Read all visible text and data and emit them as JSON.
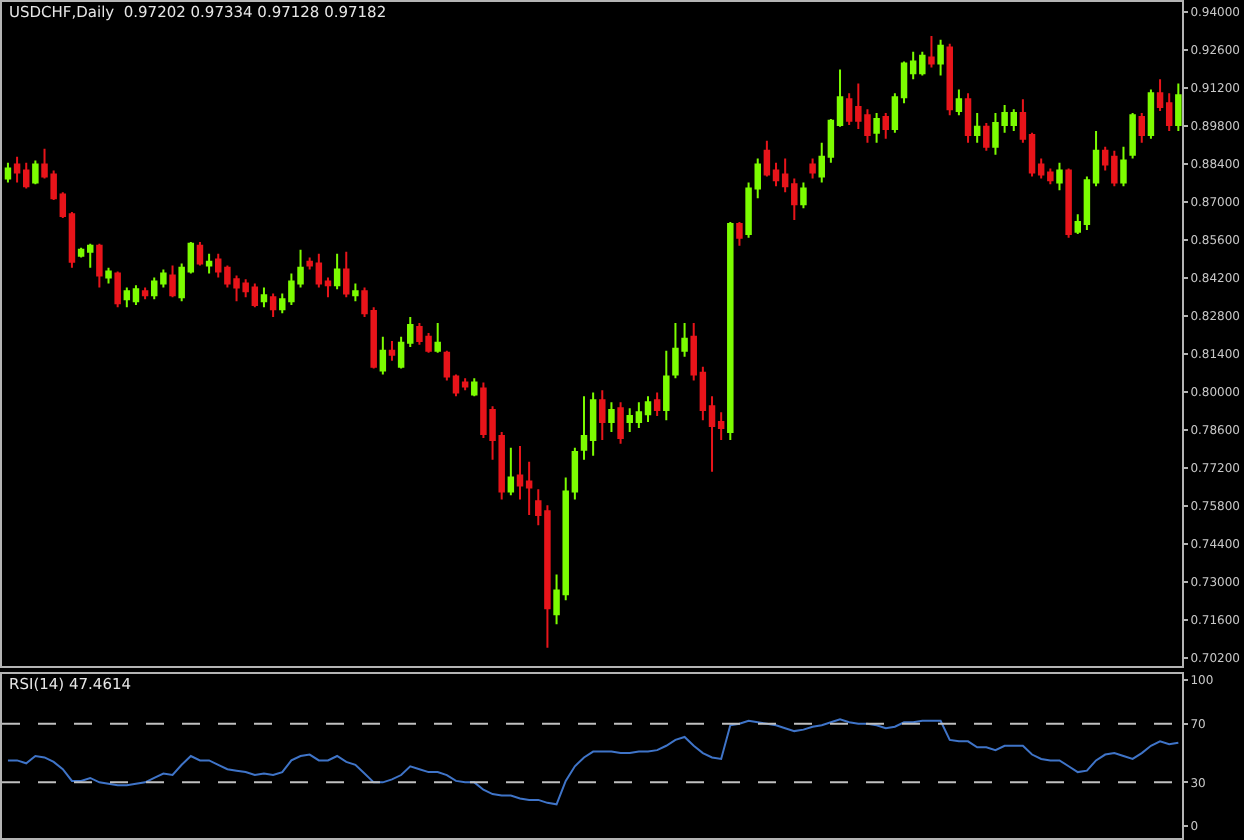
{
  "chart_data": [
    {
      "type": "candlestick",
      "title": "USDCHF,Daily  0.97202 0.97334 0.97128 0.97182",
      "categories": [
        null,
        null,
        null,
        null,
        null,
        null,
        null,
        null,
        null,
        null,
        null,
        null,
        null,
        null,
        null,
        null,
        null,
        null,
        null,
        null,
        null,
        null,
        null,
        null,
        null,
        null,
        null,
        null,
        null,
        null,
        null,
        null,
        null,
        null,
        null,
        null,
        null,
        null,
        null,
        null,
        null,
        null,
        null,
        null,
        null,
        null,
        null,
        null,
        null,
        null,
        null,
        null,
        null,
        null,
        null,
        null,
        null,
        null,
        null,
        null,
        null,
        null,
        null,
        null,
        null,
        null,
        null,
        null,
        null,
        null,
        null,
        null,
        null,
        null,
        null,
        null,
        null,
        null,
        null,
        null,
        null,
        null,
        null,
        null,
        null,
        null,
        null,
        null,
        null,
        null,
        null,
        null,
        null,
        null,
        null,
        null,
        null,
        null,
        null,
        null,
        null,
        null,
        null,
        null,
        null,
        null,
        null,
        null,
        null,
        null,
        null,
        null,
        null,
        null,
        null,
        null,
        null,
        null,
        null,
        null,
        null,
        null,
        null,
        null,
        null,
        null,
        null,
        null,
        null
      ],
      "ohlc": [
        [
          0.8787,
          0.8845,
          0.8772,
          0.8823
        ],
        [
          0.8838,
          0.8867,
          0.8772,
          0.8809
        ],
        [
          0.8816,
          0.8845,
          0.875,
          0.8758
        ],
        [
          0.8772,
          0.8853,
          0.8765,
          0.8838
        ],
        [
          0.8838,
          0.8896,
          0.8787,
          0.8794
        ],
        [
          0.8801,
          0.8816,
          0.8707,
          0.8714
        ],
        [
          0.8728,
          0.8736,
          0.8641,
          0.8648
        ],
        [
          0.8655,
          0.8663,
          0.8458,
          0.848
        ],
        [
          0.8502,
          0.8531,
          0.8495,
          0.8524
        ],
        [
          0.8517,
          0.8546,
          0.8458,
          0.8539
        ],
        [
          0.8539,
          0.8546,
          0.8385,
          0.8429
        ],
        [
          0.8422,
          0.8458,
          0.84,
          0.8444
        ],
        [
          0.8436,
          0.8444,
          0.8312,
          0.8327
        ],
        [
          0.8342,
          0.8385,
          0.8312,
          0.8371
        ],
        [
          0.8334,
          0.8393,
          0.832,
          0.8378
        ],
        [
          0.8371,
          0.8385,
          0.8342,
          0.8356
        ],
        [
          0.8356,
          0.8422,
          0.8342,
          0.8407
        ],
        [
          0.84,
          0.8451,
          0.8385,
          0.8436
        ],
        [
          0.8429,
          0.8466,
          0.8349,
          0.8356
        ],
        [
          0.8349,
          0.8473,
          0.8334,
          0.8458
        ],
        [
          0.8444,
          0.8553,
          0.8436,
          0.8546
        ],
        [
          0.8539,
          0.8553,
          0.8466,
          0.8473
        ],
        [
          0.8466,
          0.8509,
          0.8436,
          0.848
        ],
        [
          0.8488,
          0.8509,
          0.8422,
          0.8444
        ],
        [
          0.8458,
          0.8466,
          0.8385,
          0.84
        ],
        [
          0.8415,
          0.8429,
          0.8334,
          0.8385
        ],
        [
          0.84,
          0.8415,
          0.8349,
          0.8371
        ],
        [
          0.8385,
          0.84,
          0.8312,
          0.832
        ],
        [
          0.8334,
          0.8385,
          0.8312,
          0.8356
        ],
        [
          0.8349,
          0.8363,
          0.8276,
          0.8305
        ],
        [
          0.8305,
          0.8363,
          0.829,
          0.8342
        ],
        [
          0.8334,
          0.8436,
          0.832,
          0.8407
        ],
        [
          0.84,
          0.8524,
          0.8385,
          0.8458
        ],
        [
          0.848,
          0.8495,
          0.8451,
          0.8466
        ],
        [
          0.8473,
          0.8509,
          0.8385,
          0.84
        ],
        [
          0.8407,
          0.8422,
          0.8349,
          0.8393
        ],
        [
          0.8393,
          0.8509,
          0.8378,
          0.8451
        ],
        [
          0.8451,
          0.8517,
          0.8349,
          0.8363
        ],
        [
          0.8356,
          0.84,
          0.8334,
          0.8371
        ],
        [
          0.8371,
          0.8385,
          0.8276,
          0.829
        ],
        [
          0.8298,
          0.8312,
          0.8086,
          0.8093
        ],
        [
          0.8079,
          0.8203,
          0.8064,
          0.8152
        ],
        [
          0.8152,
          0.8188,
          0.8115,
          0.8137
        ],
        [
          0.8093,
          0.8203,
          0.8086,
          0.8181
        ],
        [
          0.8181,
          0.8276,
          0.8166,
          0.8247
        ],
        [
          0.8239,
          0.8254,
          0.8174,
          0.8188
        ],
        [
          0.8203,
          0.8217,
          0.8144,
          0.8152
        ],
        [
          0.8152,
          0.8254,
          0.8144,
          0.8181
        ],
        [
          0.8144,
          0.8152,
          0.8042,
          0.8057
        ],
        [
          0.8057,
          0.8064,
          0.7984,
          0.7998
        ],
        [
          0.8035,
          0.805,
          0.8006,
          0.802
        ],
        [
          0.7991,
          0.805,
          0.7984,
          0.8035
        ],
        [
          0.8013,
          0.8035,
          0.783,
          0.7845
        ],
        [
          0.7933,
          0.7947,
          0.775,
          0.7823
        ],
        [
          0.7838,
          0.7852,
          0.7604,
          0.7633
        ],
        [
          0.7633,
          0.7794,
          0.7619,
          0.7685
        ],
        [
          0.7692,
          0.7801,
          0.7604,
          0.7655
        ],
        [
          0.767,
          0.7743,
          0.7546,
          0.7648
        ],
        [
          0.7597,
          0.7641,
          0.7509,
          0.7546
        ],
        [
          0.756,
          0.7582,
          0.7057,
          0.7203
        ],
        [
          0.7181,
          0.7327,
          0.7144,
          0.7268
        ],
        [
          0.7254,
          0.7685,
          0.7232,
          0.7633
        ],
        [
          0.7633,
          0.7794,
          0.7604,
          0.7779
        ],
        [
          0.7787,
          0.7984,
          0.775,
          0.7838
        ],
        [
          0.7823,
          0.7998,
          0.7765,
          0.7969
        ],
        [
          0.7969,
          0.8006,
          0.7823,
          0.7889
        ],
        [
          0.7889,
          0.7962,
          0.7852,
          0.7933
        ],
        [
          0.794,
          0.7962,
          0.7809,
          0.783
        ],
        [
          0.7889,
          0.794,
          0.7852,
          0.7911
        ],
        [
          0.7889,
          0.7962,
          0.7867,
          0.7925
        ],
        [
          0.7918,
          0.7984,
          0.7889,
          0.7962
        ],
        [
          0.7969,
          0.7998,
          0.7911,
          0.7933
        ],
        [
          0.7933,
          0.8152,
          0.7896,
          0.8057
        ],
        [
          0.8064,
          0.8254,
          0.805,
          0.8159
        ],
        [
          0.8152,
          0.8254,
          0.813,
          0.8196
        ],
        [
          0.8203,
          0.8254,
          0.8042,
          0.8064
        ],
        [
          0.8071,
          0.8093,
          0.7896,
          0.7933
        ],
        [
          0.7947,
          0.7984,
          0.7706,
          0.7874
        ],
        [
          0.7889,
          0.7925,
          0.7823,
          0.7867
        ],
        [
          0.7852,
          0.8626,
          0.7823,
          0.8619
        ],
        [
          0.8619,
          0.8626,
          0.8539,
          0.8568
        ],
        [
          0.8582,
          0.8772,
          0.8568,
          0.875
        ],
        [
          0.875,
          0.886,
          0.8714,
          0.8838
        ],
        [
          0.8889,
          0.8926,
          0.8794,
          0.8801
        ],
        [
          0.8816,
          0.8845,
          0.8758,
          0.878
        ],
        [
          0.8801,
          0.886,
          0.8736,
          0.8758
        ],
        [
          0.8765,
          0.8787,
          0.8634,
          0.8692
        ],
        [
          0.8692,
          0.8772,
          0.8677,
          0.875
        ],
        [
          0.8838,
          0.886,
          0.8787,
          0.8809
        ],
        [
          0.8794,
          0.8918,
          0.8772,
          0.8867
        ],
        [
          0.8867,
          0.9006,
          0.8845,
          0.8999
        ],
        [
          0.8984,
          0.9188,
          0.8977,
          0.9086
        ],
        [
          0.9079,
          0.9101,
          0.8984,
          0.8999
        ],
        [
          0.905,
          0.9137,
          0.8969,
          0.8999
        ],
        [
          0.902,
          0.9042,
          0.8918,
          0.8947
        ],
        [
          0.8955,
          0.9028,
          0.8918,
          0.9006
        ],
        [
          0.9013,
          0.9028,
          0.8933,
          0.8969
        ],
        [
          0.8969,
          0.9101,
          0.8955,
          0.9086
        ],
        [
          0.9086,
          0.9218,
          0.9064,
          0.921
        ],
        [
          0.9174,
          0.9254,
          0.9152,
          0.9218
        ],
        [
          0.9174,
          0.9254,
          0.9166,
          0.9239
        ],
        [
          0.9232,
          0.9312,
          0.9196,
          0.921
        ],
        [
          0.921,
          0.9298,
          0.9166,
          0.9276
        ],
        [
          0.9269,
          0.9283,
          0.902,
          0.9042
        ],
        [
          0.9035,
          0.9115,
          0.902,
          0.9079
        ],
        [
          0.9079,
          0.9101,
          0.8918,
          0.8947
        ],
        [
          0.8947,
          0.9028,
          0.8918,
          0.8977
        ],
        [
          0.8977,
          0.8991,
          0.8889,
          0.8904
        ],
        [
          0.8904,
          0.9028,
          0.8874,
          0.8991
        ],
        [
          0.8984,
          0.9057,
          0.8955,
          0.9028
        ],
        [
          0.8984,
          0.9042,
          0.8962,
          0.9028
        ],
        [
          0.9028,
          0.9079,
          0.8918,
          0.8933
        ],
        [
          0.8947,
          0.8955,
          0.8794,
          0.8809
        ],
        [
          0.8838,
          0.886,
          0.8787,
          0.8801
        ],
        [
          0.8809,
          0.8823,
          0.8765,
          0.878
        ],
        [
          0.8772,
          0.8845,
          0.8743,
          0.8816
        ],
        [
          0.8816,
          0.8823,
          0.8568,
          0.8582
        ],
        [
          0.859,
          0.8655,
          0.8582,
          0.8626
        ],
        [
          0.8619,
          0.8794,
          0.8597,
          0.878
        ],
        [
          0.8772,
          0.8962,
          0.8758,
          0.8889
        ],
        [
          0.8889,
          0.8904,
          0.8816,
          0.8838
        ],
        [
          0.8867,
          0.8889,
          0.8758,
          0.8772
        ],
        [
          0.8772,
          0.8904,
          0.8758,
          0.8853
        ],
        [
          0.8874,
          0.9028,
          0.886,
          0.902
        ],
        [
          0.9013,
          0.9028,
          0.8918,
          0.8947
        ],
        [
          0.8947,
          0.9115,
          0.8933,
          0.9101
        ],
        [
          0.9101,
          0.9152,
          0.9035,
          0.905
        ],
        [
          0.9064,
          0.9101,
          0.8962,
          0.8984
        ],
        [
          0.8984,
          0.9137,
          0.8962,
          0.9093
        ]
      ],
      "colors": [
        "#7cfc00",
        "#e8141a",
        "#e8141a",
        "#7cfc00",
        "#e8141a",
        "#e8141a",
        "#e8141a",
        "#e8141a",
        "#7cfc00",
        "#7cfc00",
        "#e8141a",
        "#7cfc00",
        "#e8141a",
        "#7cfc00",
        "#7cfc00",
        "#e8141a",
        "#7cfc00",
        "#7cfc00",
        "#e8141a",
        "#7cfc00",
        "#7cfc00",
        "#e8141a",
        "#7cfc00",
        "#e8141a",
        "#e8141a",
        "#e8141a",
        "#e8141a",
        "#e8141a",
        "#7cfc00",
        "#e8141a",
        "#7cfc00",
        "#7cfc00",
        "#7cfc00",
        "#e8141a",
        "#e8141a",
        "#e8141a",
        "#7cfc00",
        "#e8141a",
        "#7cfc00",
        "#e8141a",
        "#e8141a",
        "#7cfc00",
        "#e8141a",
        "#7cfc00",
        "#7cfc00",
        "#e8141a",
        "#e8141a",
        "#7cfc00",
        "#e8141a",
        "#e8141a",
        "#e8141a",
        "#7cfc00",
        "#e8141a",
        "#e8141a",
        "#e8141a",
        "#7cfc00",
        "#e8141a",
        "#e8141a",
        "#e8141a",
        "#e8141a",
        "#7cfc00",
        "#7cfc00",
        "#7cfc00",
        "#7cfc00",
        "#7cfc00",
        "#e8141a",
        "#7cfc00",
        "#e8141a",
        "#7cfc00",
        "#7cfc00",
        "#7cfc00",
        "#e8141a",
        "#7cfc00",
        "#7cfc00",
        "#7cfc00",
        "#e8141a",
        "#e8141a",
        "#e8141a",
        "#e8141a",
        "#7cfc00",
        "#e8141a",
        "#7cfc00",
        "#7cfc00",
        "#e8141a",
        "#e8141a",
        "#e8141a",
        "#e8141a",
        "#7cfc00",
        "#e8141a",
        "#7cfc00",
        "#7cfc00",
        "#7cfc00",
        "#e8141a",
        "#e8141a",
        "#e8141a",
        "#7cfc00",
        "#e8141a",
        "#7cfc00",
        "#7cfc00",
        "#7cfc00",
        "#7cfc00",
        "#e8141a",
        "#7cfc00",
        "#e8141a",
        "#7cfc00",
        "#e8141a",
        "#7cfc00",
        "#e8141a",
        "#7cfc00",
        "#7cfc00",
        "#7cfc00",
        "#e8141a",
        "#e8141a",
        "#e8141a",
        "#e8141a",
        "#7cfc00",
        "#e8141a",
        "#7cfc00",
        "#7cfc00",
        "#7cfc00",
        "#e8141a",
        "#e8141a",
        "#7cfc00",
        "#7cfc00",
        "#e8141a",
        "#7cfc00",
        "#e8141a",
        "#e8141a",
        "#7cfc00"
      ],
      "ylim": [
        0.699,
        0.9437
      ],
      "yticks": [
        {
          "value": 0.94,
          "label": "0.94000"
        },
        {
          "value": 0.926,
          "label": "0.92600"
        },
        {
          "value": 0.912,
          "label": "0.91200"
        },
        {
          "value": 0.898,
          "label": "0.89800"
        },
        {
          "value": 0.884,
          "label": "0.88400"
        },
        {
          "value": 0.87,
          "label": "0.87000"
        },
        {
          "value": 0.856,
          "label": "0.85600"
        },
        {
          "value": 0.842,
          "label": "0.84200"
        },
        {
          "value": 0.828,
          "label": "0.82800"
        },
        {
          "value": 0.814,
          "label": "0.81400"
        },
        {
          "value": 0.8,
          "label": "0.80000"
        },
        {
          "value": 0.786,
          "label": "0.78600"
        },
        {
          "value": 0.772,
          "label": "0.77200"
        },
        {
          "value": 0.758,
          "label": "0.75800"
        },
        {
          "value": 0.744,
          "label": "0.74400"
        },
        {
          "value": 0.73,
          "label": "0.73000"
        },
        {
          "value": 0.716,
          "label": "0.71600"
        },
        {
          "value": 0.702,
          "label": "0.70200"
        }
      ],
      "tick_labels": "y"
    },
    {
      "type": "line",
      "title": "RSI(14) 47.4614",
      "categories": [
        null,
        null,
        null,
        null,
        null,
        null,
        null,
        null,
        null,
        null,
        null,
        null,
        null,
        null,
        null,
        null,
        null,
        null,
        null,
        null,
        null,
        null,
        null,
        null,
        null,
        null,
        null,
        null,
        null,
        null,
        null,
        null,
        null,
        null,
        null,
        null,
        null,
        null,
        null,
        null,
        null,
        null,
        null,
        null,
        null,
        null,
        null,
        null,
        null,
        null,
        null,
        null,
        null,
        null,
        null,
        null,
        null,
        null,
        null,
        null,
        null,
        null,
        null,
        null,
        null,
        null,
        null,
        null,
        null,
        null,
        null,
        null,
        null,
        null,
        null,
        null,
        null,
        null,
        null,
        null,
        null,
        null,
        null,
        null,
        null,
        null,
        null,
        null,
        null,
        null,
        null,
        null,
        null,
        null,
        null,
        null,
        null,
        null,
        null,
        null,
        null,
        null,
        null,
        null,
        null,
        null,
        null,
        null,
        null,
        null,
        null,
        null,
        null,
        null,
        null,
        null,
        null,
        null,
        null,
        null,
        null,
        null,
        null,
        null,
        null,
        null,
        null,
        null,
        null
      ],
      "series": [
        {
          "color": "#3f74c8",
          "values": [
            45,
            45,
            43,
            48,
            47,
            44,
            39,
            31,
            31,
            33,
            30,
            29,
            28,
            28,
            29,
            30,
            33,
            36,
            35,
            42,
            48,
            45,
            45,
            42,
            39,
            38,
            37,
            35,
            36,
            35,
            37,
            45,
            48,
            49,
            45,
            45,
            48,
            44,
            42,
            36,
            30,
            30,
            32,
            35,
            41,
            39,
            37,
            37,
            35,
            31,
            30,
            30,
            25,
            22,
            21,
            21,
            19,
            18,
            18,
            16,
            15,
            31,
            41,
            47,
            51,
            51,
            51,
            50,
            50,
            51,
            51,
            52,
            55,
            59,
            61,
            55,
            50,
            47,
            46,
            69,
            70,
            72,
            71,
            70,
            69,
            67,
            65,
            66,
            68,
            69,
            71,
            73,
            71,
            70,
            70,
            69,
            67,
            68,
            71,
            71,
            72,
            72,
            72,
            59,
            58,
            58,
            54,
            54,
            52,
            55,
            55,
            55,
            49,
            46,
            45,
            45,
            41,
            37,
            38,
            45,
            49,
            50,
            48,
            46,
            50,
            55,
            58,
            56,
            57
          ]
        }
      ],
      "ylim": [
        -8,
        104
      ],
      "yticks": [
        100,
        70,
        30,
        0
      ],
      "ref_lines": [
        {
          "axis": "y",
          "value": 70,
          "color": "#c0c0c0",
          "line_style": "dashed"
        },
        {
          "axis": "y",
          "value": 30,
          "color": "#c0c0c0",
          "line_style": "dashed"
        }
      ],
      "tick_labels": "y"
    }
  ]
}
